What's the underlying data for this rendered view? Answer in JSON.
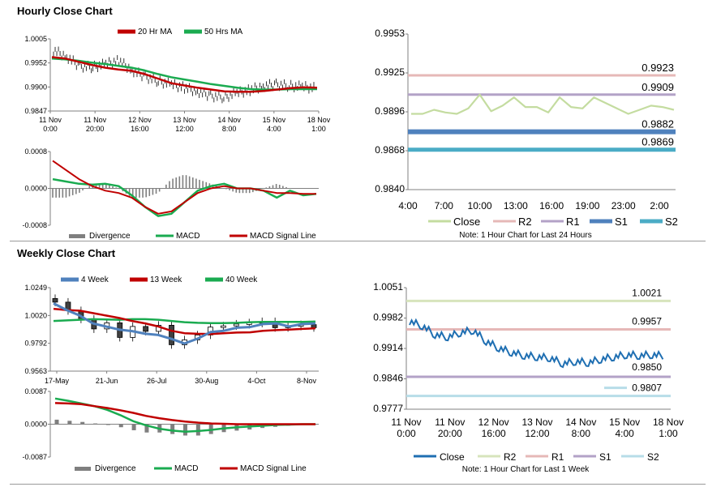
{
  "hourly": {
    "title": "Hourly Close Chart",
    "price_legend": [
      "20 Hr MA",
      "50 Hrs MA"
    ],
    "macd_legend": [
      "Divergence",
      "MACD",
      "MACD Signal Line"
    ],
    "levels_note": "Note: 1 Hour Chart for Last 24 Hours"
  },
  "weekly": {
    "title": "Weekly Close Chart",
    "price_legend": [
      "4 Week",
      "13 Week",
      "40 Week"
    ],
    "macd_legend": [
      "Divergence",
      "MACD",
      "MACD Signal Line"
    ],
    "levels_note": "Note: 1 Hour Chart for Last 1 Week"
  },
  "colors": {
    "ma_short": "#c00000",
    "ma_long": "#1aab50",
    "ma_4w": "#4f81bd",
    "divergence": "#7f7f7f",
    "signal": "#c00000",
    "macd": "#1aab50",
    "close_levels_h": "#c4dca0",
    "r2_h": "#e6b8b7",
    "r1_h": "#b3a2c7",
    "s1_h": "#4f81bd",
    "s2_h": "#4bacc6",
    "close_w": "#1f6fb2",
    "r2_w": "#d7e4bc",
    "r1_w": "#e6b8b7",
    "s1_w": "#b3a2c7",
    "s2_w": "#b7dde8"
  },
  "chart_data": [
    {
      "id": "hourly_price",
      "type": "line",
      "x_ticks": [
        "11 Nov\n0:00",
        "11 Nov\n20:00",
        "12 Nov\n16:00",
        "13 Nov\n12:00",
        "14 Nov\n8:00",
        "15 Nov\n4:00",
        "18 Nov\n1:00"
      ],
      "y_ticks": [
        "1.0005",
        "0.9952",
        "0.9900",
        "0.9847"
      ],
      "ylim": [
        0.9847,
        1.0005
      ],
      "series": [
        {
          "name": "20 Hr MA",
          "values": [
            0.9965,
            0.9962,
            0.9955,
            0.9948,
            0.9942,
            0.9938,
            0.9935,
            0.9928,
            0.9918,
            0.9908,
            0.9903,
            0.9898,
            0.9894,
            0.989,
            0.9889,
            0.9889,
            0.9891,
            0.9894,
            0.9897,
            0.9899,
            0.9898
          ]
        },
        {
          "name": "50 Hrs MA",
          "values": [
            0.9962,
            0.996,
            0.9957,
            0.9953,
            0.995,
            0.9946,
            0.9942,
            0.9936,
            0.9928,
            0.9921,
            0.9916,
            0.9911,
            0.9906,
            0.9902,
            0.9898,
            0.9895,
            0.9894,
            0.9894,
            0.9895,
            0.9895,
            0.9895
          ]
        },
        {
          "name": "Close",
          "values": [
            0.998,
            0.9966,
            0.9945,
            0.9943,
            0.995,
            0.9957,
            0.9936,
            0.9922,
            0.9912,
            0.9905,
            0.9898,
            0.989,
            0.988,
            0.9877,
            0.9886,
            0.9893,
            0.9902,
            0.9905,
            0.9902,
            0.99,
            0.9897
          ]
        }
      ]
    },
    {
      "id": "hourly_macd",
      "type": "bar",
      "y_ticks": [
        "0.0008",
        "0.0000",
        "-0.0008"
      ],
      "ylim": [
        -0.0008,
        0.0008
      ],
      "series": [
        {
          "name": "Divergence",
          "values": [
            -0.0002,
            -0.0002,
            -0.0001,
            0.0001,
            0.0001,
            0.0,
            -0.0002,
            -0.0002,
            -0.0001,
            0.0002,
            0.0003,
            0.0002,
            0.0001,
            0.0,
            -0.0001,
            -0.0001,
            0.0,
            0.0001,
            0.0,
            0.0,
            0.0
          ]
        },
        {
          "name": "MACD",
          "values": [
            0.0002,
            0.00015,
            0.0001,
            8e-05,
            0.0001,
            5e-05,
            -0.00015,
            -0.0004,
            -0.0006,
            -0.00055,
            -0.0003,
            -5e-05,
            5e-05,
            0.0001,
            0.0,
            0.0,
            -5e-05,
            -0.0002,
            -5e-05,
            -0.00015,
            -0.00012
          ]
        },
        {
          "name": "MACD Signal Line",
          "values": [
            0.0006,
            0.0004,
            0.0002,
            5e-05,
            -5e-05,
            -0.0001,
            -0.0002,
            -0.0004,
            -0.00055,
            -0.0005,
            -0.0003,
            -0.0001,
            0.0,
            5e-05,
            0.0,
            0.0,
            -5e-05,
            -0.0001,
            -0.0001,
            -0.00012,
            -0.00012
          ]
        }
      ]
    },
    {
      "id": "hourly_levels",
      "type": "line",
      "x_ticks": [
        "4:00",
        "7:00",
        "10:00",
        "13:00",
        "16:00",
        "19:00",
        "23:00",
        "2:00"
      ],
      "y_ticks": [
        "0.9953",
        "0.9925",
        "0.9896",
        "0.9868",
        "0.9840"
      ],
      "ylim": [
        0.984,
        0.9953
      ],
      "series": [
        {
          "name": "Close",
          "values": [
            0.9895,
            0.9895,
            0.9898,
            0.9896,
            0.9895,
            0.9899,
            0.9909,
            0.9897,
            0.9901,
            0.9907,
            0.99,
            0.99,
            0.9896,
            0.9907,
            0.99,
            0.9899,
            0.9907,
            0.9903,
            0.9899,
            0.9895,
            0.9898,
            0.9901,
            0.99,
            0.9898
          ]
        },
        {
          "name": "R2",
          "value": 0.9923,
          "label": "0.9923"
        },
        {
          "name": "R1",
          "value": 0.9909,
          "label": "0.9909"
        },
        {
          "name": "S1",
          "value": 0.9882,
          "label": "0.9882"
        },
        {
          "name": "S2",
          "value": 0.9869,
          "label": "0.9869"
        }
      ]
    },
    {
      "id": "weekly_price",
      "type": "line",
      "x_ticks": [
        "17-May",
        "21-Jun",
        "26-Jul",
        "30-Aug",
        "4-Oct",
        "8-Nov"
      ],
      "y_ticks": [
        "1.0249",
        "1.0020",
        "0.9792",
        "0.9563"
      ],
      "ylim": [
        0.9563,
        1.0249
      ],
      "series": [
        {
          "name": "4 Week",
          "values": [
            1.012,
            1.0065,
            1.002,
            0.9955,
            0.993,
            0.9905,
            0.9892,
            0.987,
            0.986,
            0.9828,
            0.979,
            0.983,
            0.9885,
            0.9895,
            0.992,
            0.9925,
            0.995,
            0.9955,
            0.993,
            0.995,
            0.9955
          ]
        },
        {
          "name": "13 Week",
          "values": [
            1.0075,
            1.0065,
            1.006,
            1.004,
            1.002,
            1.0,
            0.9975,
            0.9955,
            0.993,
            0.9895,
            0.9875,
            0.987,
            0.9868,
            0.9875,
            0.988,
            0.9882,
            0.9895,
            0.99,
            0.9905,
            0.991,
            0.9915
          ]
        },
        {
          "name": "40 Week",
          "values": [
            0.9975,
            0.998,
            0.9985,
            0.999,
            0.9988,
            0.9985,
            0.999,
            0.999,
            0.9985,
            0.9975,
            0.9965,
            0.996,
            0.9958,
            0.9958,
            0.996,
            0.9965,
            0.9968,
            0.9968,
            0.9968,
            0.9968,
            0.997
          ]
        },
        {
          "name": "Close",
          "values": [
            1.013,
            1.006,
            0.999,
            0.991,
            0.996,
            0.984,
            0.993,
            0.989,
            0.994,
            0.978,
            0.982,
            0.986,
            0.9925,
            0.9935,
            0.995,
            0.996,
            0.997,
            0.992,
            0.9935,
            0.9945,
            0.992
          ]
        }
      ]
    },
    {
      "id": "weekly_macd",
      "type": "bar",
      "y_ticks": [
        "0.0087",
        "0.0000",
        "-0.0087"
      ],
      "ylim": [
        -0.0087,
        0.0087
      ],
      "series": [
        {
          "name": "Divergence",
          "values": [
            0.0012,
            0.0009,
            0.0006,
            0.0002,
            0.0,
            -0.0008,
            -0.0016,
            -0.0022,
            -0.0022,
            -0.0026,
            -0.003,
            -0.003,
            -0.0026,
            -0.0021,
            -0.0017,
            -0.0014,
            -0.001,
            -0.0007,
            -0.0004,
            -0.0002,
            -0.0001
          ]
        },
        {
          "name": "MACD",
          "values": [
            0.0068,
            0.0062,
            0.0055,
            0.0048,
            0.0038,
            0.0024,
            0.0008,
            -0.0003,
            -0.0012,
            -0.0017,
            -0.002,
            -0.0018,
            -0.0015,
            -0.0011,
            -0.0008,
            -0.0006,
            -0.0004,
            -0.0002,
            -0.0001,
            0.0,
            0.0
          ]
        },
        {
          "name": "MACD Signal Line",
          "values": [
            0.0056,
            0.0055,
            0.0053,
            0.0048,
            0.0043,
            0.0037,
            0.003,
            0.0022,
            0.0016,
            0.0011,
            0.0007,
            0.0004,
            0.0002,
            0.0001,
            0.0,
            0.0,
            0.0,
            0.0,
            0.0,
            0.0,
            0.0
          ]
        }
      ]
    },
    {
      "id": "weekly_levels",
      "type": "line",
      "x_ticks": [
        "11 Nov\n0:00",
        "11 Nov\n20:00",
        "12 Nov\n16:00",
        "13 Nov\n12:00",
        "14 Nov\n8:00",
        "15 Nov\n4:00",
        "18 Nov\n1:00"
      ],
      "y_ticks": [
        "1.0051",
        "0.9982",
        "0.9914",
        "0.9846",
        "0.9777"
      ],
      "ylim": [
        0.9777,
        1.0051
      ],
      "series": [
        {
          "name": "Close",
          "values": [
            0.9975,
            0.9965,
            0.9945,
            0.994,
            0.995,
            0.9955,
            0.993,
            0.9915,
            0.9905,
            0.9898,
            0.9895,
            0.9893,
            0.988,
            0.9885,
            0.9882,
            0.989,
            0.9895,
            0.99,
            0.9898,
            0.99,
            0.9897
          ]
        },
        {
          "name": "R2",
          "value": 1.0021,
          "label": "1.0021"
        },
        {
          "name": "R1",
          "value": 0.9957,
          "label": "0.9957"
        },
        {
          "name": "S1",
          "value": 0.985,
          "label": "0.9850"
        },
        {
          "name": "S2",
          "value": 0.9807,
          "label": "0.9807"
        }
      ]
    }
  ]
}
